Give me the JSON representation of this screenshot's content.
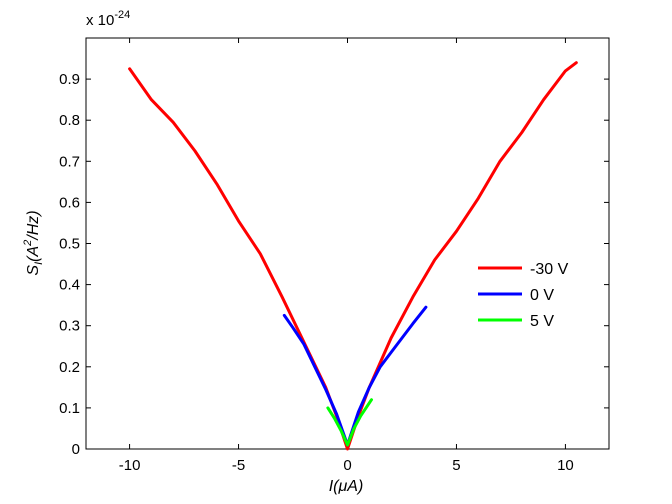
{
  "chart_data": {
    "type": "line",
    "title": "",
    "xlabel_main": "I",
    "xlabel_unit": "(μA)",
    "ylabel_main": "S",
    "ylabel_sub": "I",
    "ylabel_unit_a": "(A",
    "ylabel_unit_exp": "2",
    "ylabel_unit_b": "/Hz)",
    "y_multiplier_base": "x 10",
    "y_multiplier_exp": "-24",
    "xlim": [
      -12,
      12
    ],
    "ylim": [
      0,
      1.0
    ],
    "x_ticks": [
      -10,
      -5,
      0,
      5,
      10
    ],
    "x_tick_labels": [
      "-10",
      "-5",
      "0",
      "5",
      "10"
    ],
    "y_ticks": [
      0,
      0.1,
      0.2,
      0.3,
      0.4,
      0.5,
      0.6,
      0.7,
      0.8,
      0.9
    ],
    "y_tick_labels": [
      "0",
      "0.1",
      "0.2",
      "0.3",
      "0.4",
      "0.5",
      "0.6",
      "0.7",
      "0.8",
      "0.9"
    ],
    "grid": false,
    "legend_position": "right",
    "series": [
      {
        "name": "-30 V",
        "color": "#ff0000",
        "x": [
          -10,
          -9,
          -8,
          -7,
          -6,
          -5,
          -4,
          -3,
          -2,
          -1,
          -0.5,
          0,
          0.5,
          1,
          2,
          3,
          4,
          5,
          6,
          7,
          8,
          9,
          10,
          10.5
        ],
        "y": [
          0.925,
          0.85,
          0.795,
          0.725,
          0.645,
          0.555,
          0.475,
          0.37,
          0.26,
          0.15,
          0.08,
          0.0,
          0.08,
          0.15,
          0.27,
          0.37,
          0.46,
          0.53,
          0.61,
          0.7,
          0.77,
          0.85,
          0.92,
          0.94
        ]
      },
      {
        "name": "0 V",
        "color": "#0000ff",
        "x": [
          -2.9,
          -2.5,
          -2,
          -1.5,
          -1,
          -0.5,
          0,
          0.5,
          1,
          1.5,
          2,
          2.5,
          3,
          3.6
        ],
        "y": [
          0.325,
          0.295,
          0.255,
          0.2,
          0.145,
          0.085,
          0.01,
          0.09,
          0.15,
          0.2,
          0.235,
          0.27,
          0.305,
          0.345
        ]
      },
      {
        "name": "5 V",
        "color": "#00ff00",
        "x": [
          -0.9,
          -0.6,
          -0.3,
          0,
          0.3,
          0.6,
          1.1
        ],
        "y": [
          0.1,
          0.075,
          0.045,
          0.01,
          0.05,
          0.08,
          0.12
        ]
      }
    ]
  }
}
